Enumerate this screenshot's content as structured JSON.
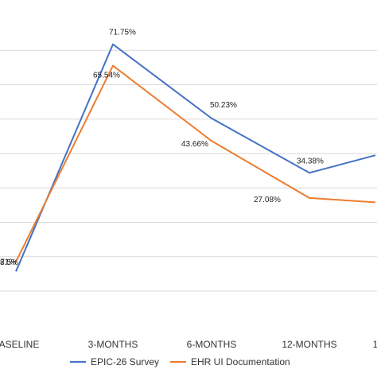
{
  "chart_data": {
    "type": "line",
    "categories": [
      "BASELINE",
      "3-MONTHS",
      "6-MONTHS",
      "12-MONTHS",
      "1"
    ],
    "ylim": [
      0,
      80
    ],
    "grid": true,
    "legend_position": "bottom",
    "series": [
      {
        "name": "EPIC-26 Survey",
        "color": "#4472c4",
        "values": [
          5.71,
          71.75,
          50.23,
          34.38,
          39.5
        ],
        "labels": [
          "5.71%",
          "71.75%",
          "50.23%",
          "34.38%",
          ""
        ]
      },
      {
        "name": "EHR UI Documentation",
        "color": "#ed7d31",
        "values": [
          8.5,
          65.54,
          43.66,
          27.08,
          25.8
        ],
        "labels": [
          "8.5%",
          "65.54%",
          "43.66%",
          "27.08%",
          ""
        ]
      }
    ]
  }
}
